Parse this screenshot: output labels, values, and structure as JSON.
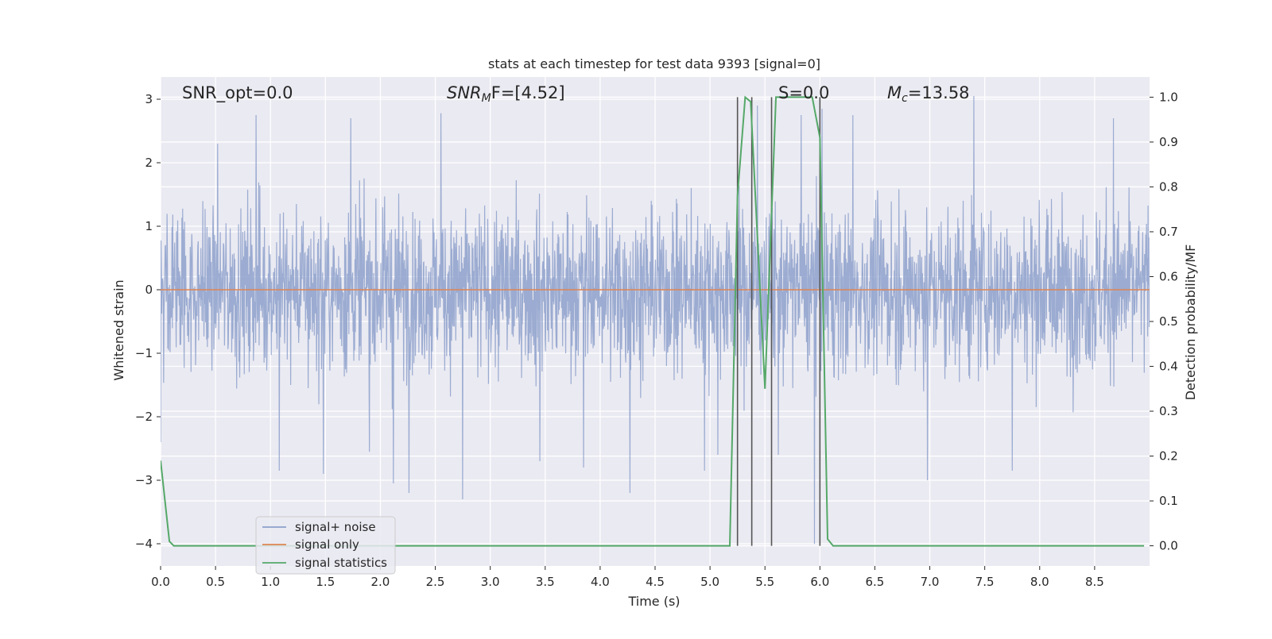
{
  "chart_data": {
    "type": "line",
    "title": "stats at each timestep for test data 9393 [signal=0]",
    "xlabel": "Time (s)",
    "ylabel_left": "Whitened strain",
    "ylabel_right": "Detection probability/MF",
    "xlim": [
      0.0,
      9.0
    ],
    "ylim_left": [
      -4.35,
      3.35
    ],
    "ylim_right": [
      -0.045,
      1.045
    ],
    "x_ticks": [
      "0.0",
      "0.5",
      "1.0",
      "1.5",
      "2.0",
      "2.5",
      "3.0",
      "3.5",
      "4.0",
      "4.5",
      "5.0",
      "5.5",
      "6.0",
      "6.5",
      "7.0",
      "7.5",
      "8.0",
      "8.5"
    ],
    "y_ticks_left": [
      "3",
      "2",
      "1",
      "0",
      "−1",
      "−2",
      "−3",
      "−4"
    ],
    "y_ticks_right": [
      "1.0",
      "0.9",
      "0.8",
      "0.7",
      "0.6",
      "0.5",
      "0.4",
      "0.3",
      "0.2",
      "0.1",
      "0.0"
    ],
    "grid": true,
    "legend_position": "lower-left",
    "colors": {
      "noise": "#8da0cb",
      "signal_only": "#dd8452",
      "statistics": "#55a868",
      "vlines": "#555555",
      "plot_bg": "#eaeaf2",
      "grid": "#ffffff"
    },
    "annotations": {
      "snr_opt": "SNR_opt=0.0",
      "snr_mf_main": "SNR",
      "snr_mf_sub": "M",
      "snr_mf_tail": "F=[4.52]",
      "s_value": "S=0.0",
      "mc_main": "M",
      "mc_sub": "c",
      "mc_tail": "=13.58"
    },
    "series": [
      {
        "name": "signal+ noise",
        "axis": "left",
        "kind": "noise",
        "x_range": [
          0.0,
          9.0
        ],
        "typical_abs_max": 2.0,
        "spikes": [
          {
            "x": 0.0,
            "y": 2.6
          },
          {
            "x": 0.0,
            "y": -2.4
          },
          {
            "x": 0.52,
            "y": 2.3
          },
          {
            "x": 0.87,
            "y": 2.75
          },
          {
            "x": 1.08,
            "y": -2.85
          },
          {
            "x": 1.48,
            "y": -2.9
          },
          {
            "x": 1.73,
            "y": 2.7
          },
          {
            "x": 1.9,
            "y": -2.55
          },
          {
            "x": 2.12,
            "y": -3.05
          },
          {
            "x": 2.26,
            "y": -3.2
          },
          {
            "x": 2.55,
            "y": 2.78
          },
          {
            "x": 2.75,
            "y": -3.3
          },
          {
            "x": 3.45,
            "y": -2.7
          },
          {
            "x": 3.85,
            "y": -2.8
          },
          {
            "x": 4.27,
            "y": -3.2
          },
          {
            "x": 4.95,
            "y": -2.85
          },
          {
            "x": 5.07,
            "y": -2.6
          },
          {
            "x": 5.43,
            "y": 2.9
          },
          {
            "x": 5.62,
            "y": -2.6
          },
          {
            "x": 5.83,
            "y": 2.75
          },
          {
            "x": 5.95,
            "y": -4.0
          },
          {
            "x": 6.02,
            "y": 2.85
          },
          {
            "x": 6.3,
            "y": 2.75
          },
          {
            "x": 6.98,
            "y": -3.0
          },
          {
            "x": 7.4,
            "y": 3.05
          },
          {
            "x": 7.75,
            "y": -2.85
          },
          {
            "x": 8.67,
            "y": 2.7
          }
        ]
      },
      {
        "name": "signal only",
        "axis": "left",
        "x": [
          0.0,
          9.0
        ],
        "y": [
          0.0,
          0.0
        ]
      },
      {
        "name": "signal statistics",
        "axis": "right",
        "x": [
          0.0,
          0.08,
          0.12,
          5.18,
          5.25,
          5.32,
          5.37,
          5.5,
          5.6,
          5.93,
          6.0,
          6.07,
          6.12,
          8.95
        ],
        "y": [
          0.19,
          0.01,
          0.0,
          0.0,
          0.78,
          1.0,
          0.99,
          0.35,
          1.0,
          1.0,
          0.91,
          0.015,
          0.0,
          0.0
        ]
      }
    ],
    "vlines": [
      5.25,
      5.38,
      5.56,
      6.0
    ],
    "legend": [
      "signal+ noise",
      "signal only",
      "signal statistics"
    ]
  }
}
